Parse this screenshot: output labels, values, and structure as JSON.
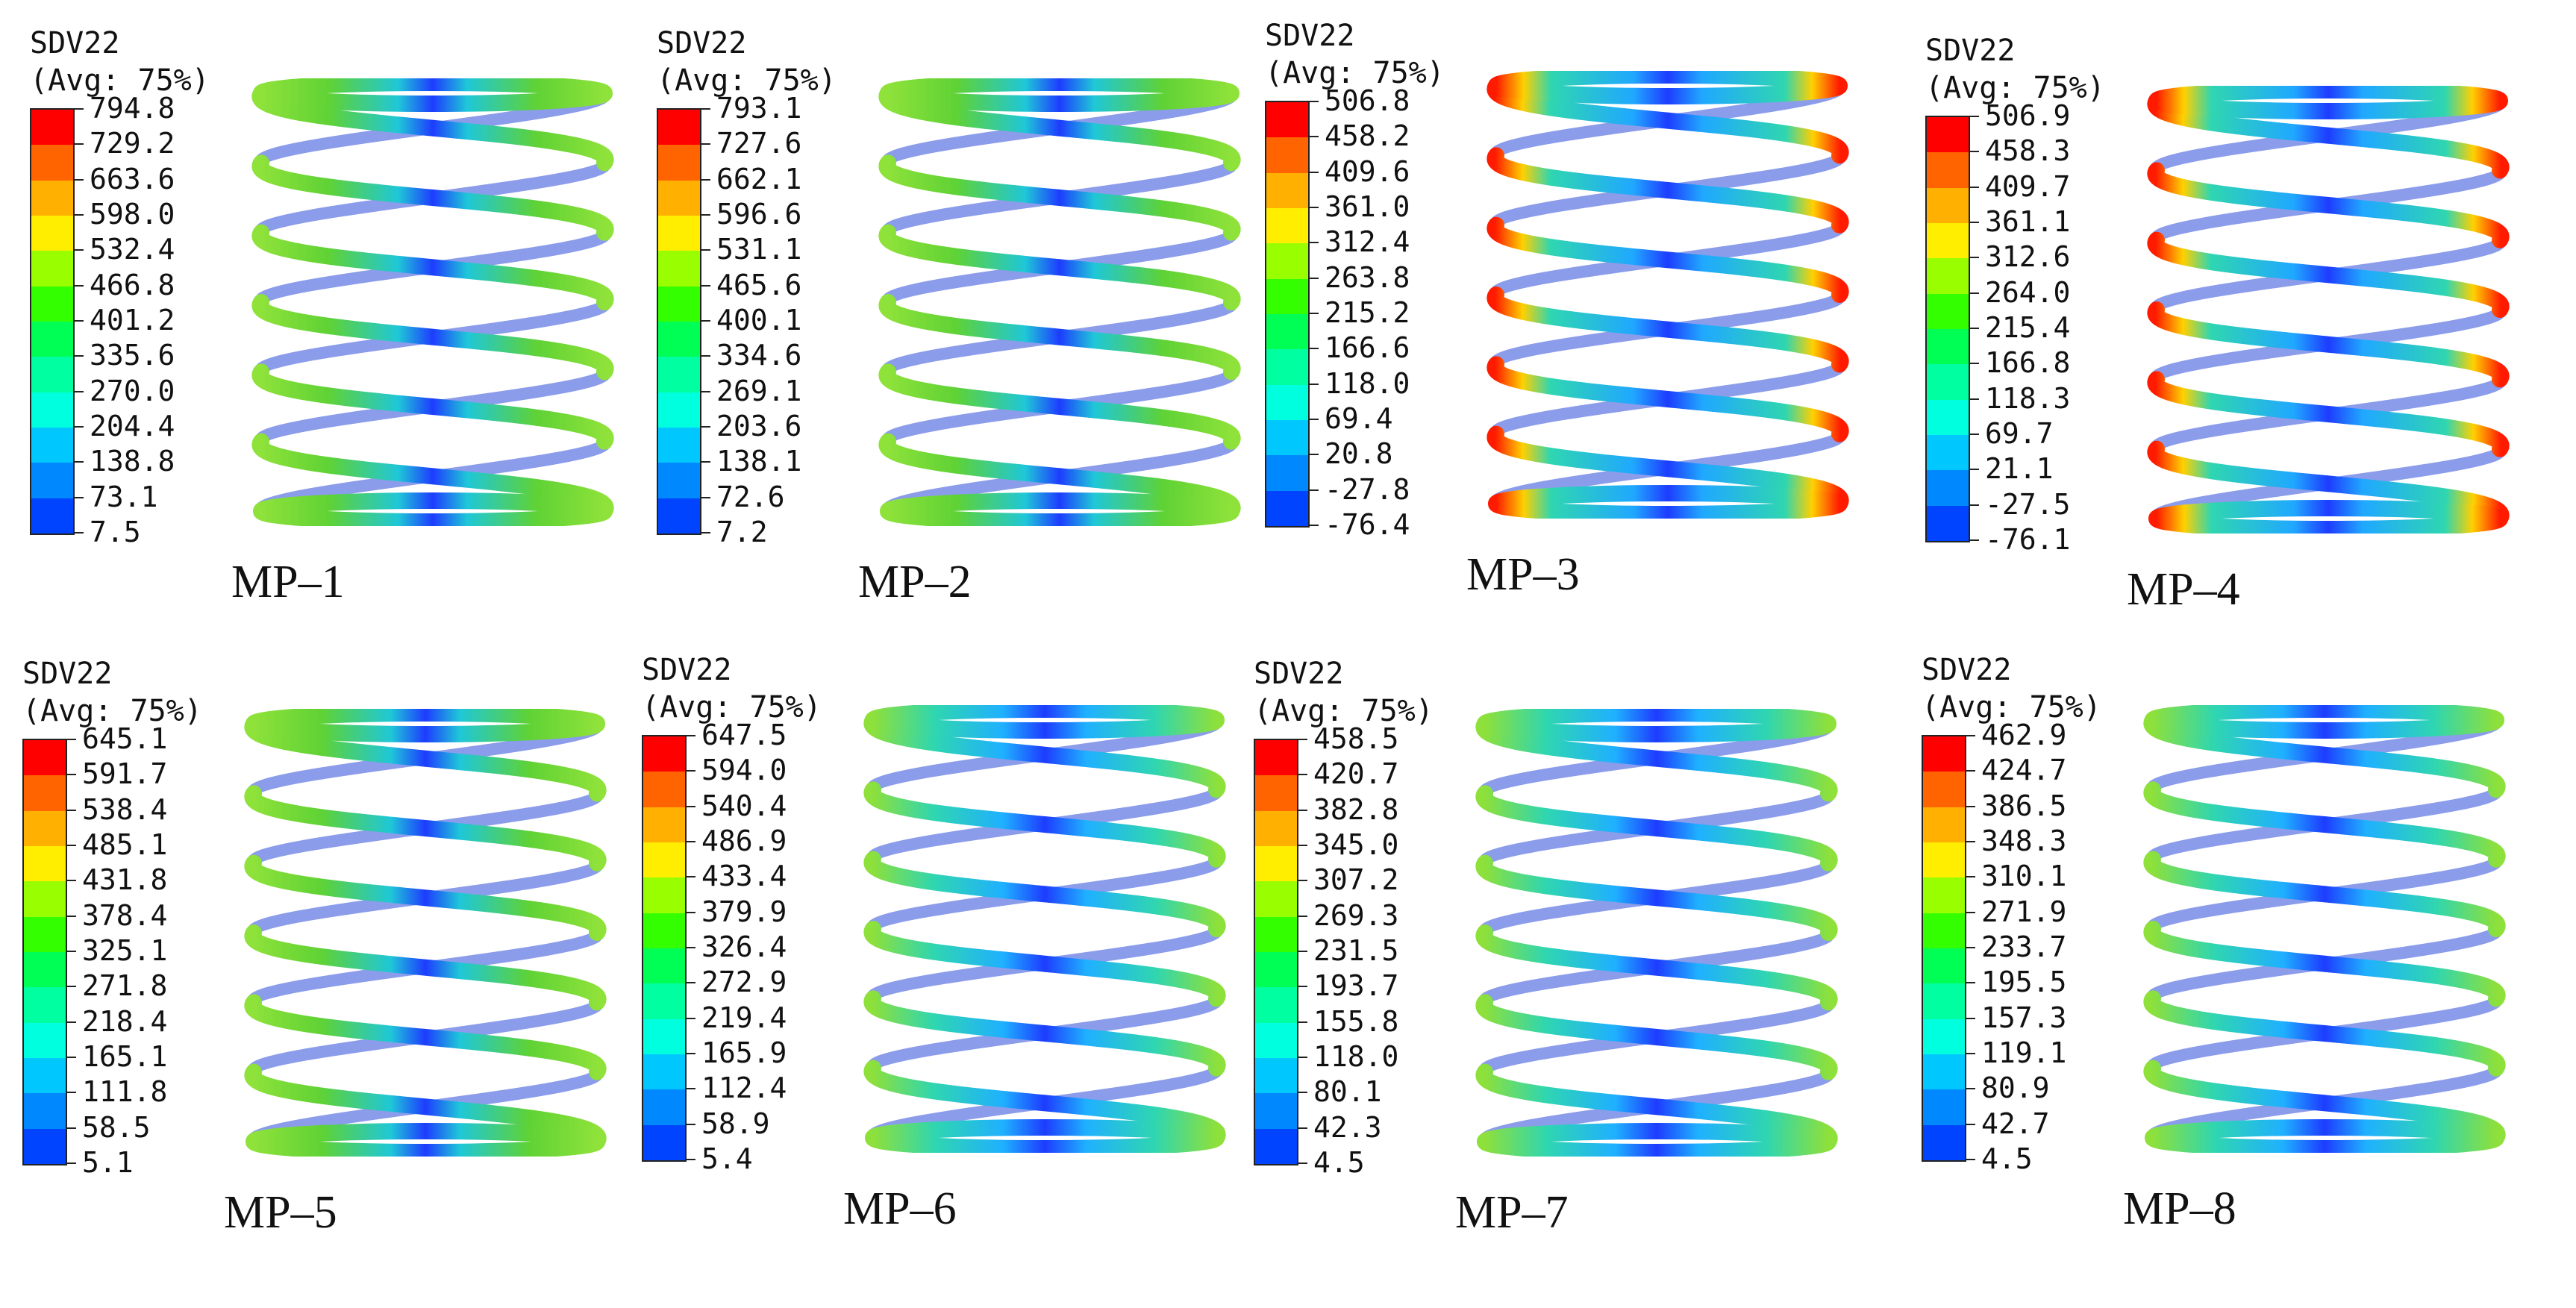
{
  "colors": {
    "scale": [
      "#0000ff",
      "#0044ff",
      "#0088ff",
      "#00c8ff",
      "#00ffdf",
      "#00ffa0",
      "#00ff54",
      "#33ff00",
      "#99ff00",
      "#ffee00",
      "#ffb000",
      "#ff6400",
      "#ff0000"
    ],
    "spring_green_base": "#5fd235",
    "spring_blue": "#1e3cff",
    "spring_teal": "#2fd6b0",
    "spring_red": "#ff1a00"
  },
  "panels": [
    {
      "variable": "SDV22",
      "avg": "(Avg: 75%)",
      "caption": "MP–1",
      "variant": "green",
      "legend": [
        "794.8",
        "729.2",
        "663.6",
        "598.0",
        "532.4",
        "466.8",
        "401.2",
        "335.6",
        "270.0",
        "204.4",
        "138.8",
        "73.1",
        "7.5"
      ]
    },
    {
      "variable": "SDV22",
      "avg": "(Avg: 75%)",
      "caption": "MP–2",
      "variant": "green",
      "legend": [
        "793.1",
        "727.6",
        "662.1",
        "596.6",
        "531.1",
        "465.6",
        "400.1",
        "334.6",
        "269.1",
        "203.6",
        "138.1",
        "72.6",
        "7.2"
      ]
    },
    {
      "variable": "SDV22",
      "avg": "(Avg: 75%)",
      "caption": "MP–3",
      "variant": "red",
      "legend": [
        "506.8",
        "458.2",
        "409.6",
        "361.0",
        "312.4",
        "263.8",
        "215.2",
        "166.6",
        "118.0",
        "69.4",
        "20.8",
        "-27.8",
        "-76.4"
      ]
    },
    {
      "variable": "SDV22",
      "avg": "(Avg: 75%)",
      "caption": "MP–4",
      "variant": "red",
      "legend": [
        "506.9",
        "458.3",
        "409.7",
        "361.1",
        "312.6",
        "264.0",
        "215.4",
        "166.8",
        "118.3",
        "69.7",
        "21.1",
        "-27.5",
        "-76.1"
      ]
    },
    {
      "variable": "SDV22",
      "avg": "(Avg: 75%)",
      "caption": "MP–5",
      "variant": "green",
      "legend": [
        "645.1",
        "591.7",
        "538.4",
        "485.1",
        "431.8",
        "378.4",
        "325.1",
        "271.8",
        "218.4",
        "165.1",
        "111.8",
        "58.5",
        "5.1"
      ]
    },
    {
      "variable": "SDV22",
      "avg": "(Avg: 75%)",
      "caption": "MP–6",
      "variant": "teal",
      "legend": [
        "647.5",
        "594.0",
        "540.4",
        "486.9",
        "433.4",
        "379.9",
        "326.4",
        "272.9",
        "219.4",
        "165.9",
        "112.4",
        "58.9",
        "5.4"
      ]
    },
    {
      "variable": "SDV22",
      "avg": "(Avg: 75%)",
      "caption": "MP–7",
      "variant": "teal",
      "legend": [
        "458.5",
        "420.7",
        "382.8",
        "345.0",
        "307.2",
        "269.3",
        "231.5",
        "193.7",
        "155.8",
        "118.0",
        "80.1",
        "42.3",
        "4.5"
      ]
    },
    {
      "variable": "SDV22",
      "avg": "(Avg: 75%)",
      "caption": "MP–8",
      "variant": "teal",
      "legend": [
        "462.9",
        "424.7",
        "386.5",
        "348.3",
        "310.1",
        "271.9",
        "233.7",
        "195.5",
        "157.3",
        "119.1",
        "80.9",
        "42.7",
        "4.5"
      ]
    }
  ]
}
